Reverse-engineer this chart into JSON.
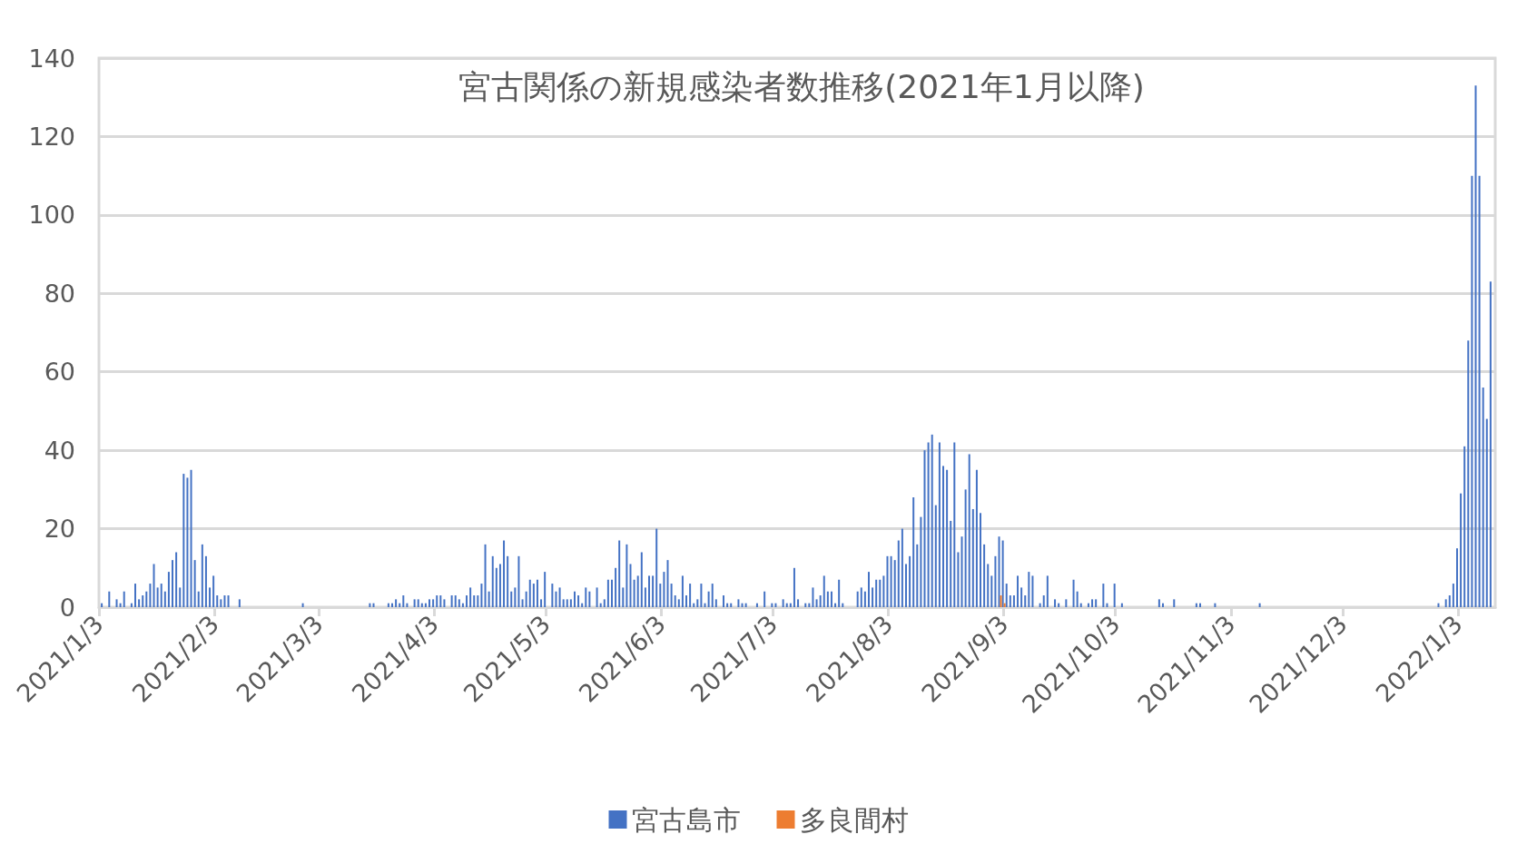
{
  "chart_data": {
    "type": "bar",
    "title": "宮古関係の新規感染者数推移(2021年1月以降)",
    "xlim": [
      "2021-01-03",
      "2022-01-13"
    ],
    "xticks": [
      {
        "value": "2021-01-03",
        "label": "2021/1/3"
      },
      {
        "value": "2021-02-03",
        "label": "2021/2/3"
      },
      {
        "value": "2021-03-03",
        "label": "2021/3/3"
      },
      {
        "value": "2021-04-03",
        "label": "2021/4/3"
      },
      {
        "value": "2021-05-03",
        "label": "2021/5/3"
      },
      {
        "value": "2021-06-03",
        "label": "2021/6/3"
      },
      {
        "value": "2021-07-03",
        "label": "2021/7/3"
      },
      {
        "value": "2021-08-03",
        "label": "2021/8/3"
      },
      {
        "value": "2021-09-03",
        "label": "2021/9/3"
      },
      {
        "value": "2021-10-03",
        "label": "2021/10/3"
      },
      {
        "value": "2021-11-03",
        "label": "2021/11/3"
      },
      {
        "value": "2021-12-03",
        "label": "2021/12/3"
      },
      {
        "value": "2022-01-03",
        "label": "2022/1/3"
      }
    ],
    "ylim": [
      0,
      140
    ],
    "yticks": [
      0,
      20,
      40,
      60,
      80,
      100,
      120,
      140
    ],
    "grid": "y",
    "legend": "bottom",
    "series": [
      {
        "name": "宮古島市",
        "color": "#4472c4",
        "x": [
          "2021-01-04",
          "2021-01-06",
          "2021-01-08",
          "2021-01-09",
          "2021-01-10",
          "2021-01-12",
          "2021-01-13",
          "2021-01-14",
          "2021-01-15",
          "2021-01-16",
          "2021-01-17",
          "2021-01-18",
          "2021-01-19",
          "2021-01-20",
          "2021-01-21",
          "2021-01-22",
          "2021-01-23",
          "2021-01-24",
          "2021-01-25",
          "2021-01-26",
          "2021-01-27",
          "2021-01-28",
          "2021-01-29",
          "2021-01-30",
          "2021-01-31",
          "2021-02-01",
          "2021-02-02",
          "2021-02-03",
          "2021-02-04",
          "2021-02-05",
          "2021-02-06",
          "2021-02-07",
          "2021-02-10",
          "2021-02-27",
          "2021-03-17",
          "2021-03-18",
          "2021-03-22",
          "2021-03-23",
          "2021-03-24",
          "2021-03-25",
          "2021-03-26",
          "2021-03-27",
          "2021-03-29",
          "2021-03-30",
          "2021-03-31",
          "2021-04-01",
          "2021-04-02",
          "2021-04-03",
          "2021-04-04",
          "2021-04-05",
          "2021-04-06",
          "2021-04-08",
          "2021-04-09",
          "2021-04-10",
          "2021-04-11",
          "2021-04-12",
          "2021-04-13",
          "2021-04-14",
          "2021-04-15",
          "2021-04-16",
          "2021-04-17",
          "2021-04-18",
          "2021-04-19",
          "2021-04-20",
          "2021-04-21",
          "2021-04-22",
          "2021-04-23",
          "2021-04-24",
          "2021-04-25",
          "2021-04-26",
          "2021-04-27",
          "2021-04-28",
          "2021-04-29",
          "2021-04-30",
          "2021-05-01",
          "2021-05-02",
          "2021-05-03",
          "2021-05-05",
          "2021-05-06",
          "2021-05-07",
          "2021-05-08",
          "2021-05-09",
          "2021-05-10",
          "2021-05-11",
          "2021-05-12",
          "2021-05-13",
          "2021-05-14",
          "2021-05-15",
          "2021-05-17",
          "2021-05-18",
          "2021-05-19",
          "2021-05-20",
          "2021-05-21",
          "2021-05-22",
          "2021-05-23",
          "2021-05-24",
          "2021-05-25",
          "2021-05-26",
          "2021-05-27",
          "2021-05-28",
          "2021-05-29",
          "2021-05-30",
          "2021-05-31",
          "2021-06-01",
          "2021-06-02",
          "2021-06-03",
          "2021-06-04",
          "2021-06-05",
          "2021-06-06",
          "2021-06-07",
          "2021-06-08",
          "2021-06-09",
          "2021-06-10",
          "2021-06-11",
          "2021-06-12",
          "2021-06-13",
          "2021-06-14",
          "2021-06-15",
          "2021-06-16",
          "2021-06-17",
          "2021-06-18",
          "2021-06-20",
          "2021-06-21",
          "2021-06-22",
          "2021-06-24",
          "2021-06-25",
          "2021-06-26",
          "2021-06-29",
          "2021-07-01",
          "2021-07-03",
          "2021-07-04",
          "2021-07-06",
          "2021-07-07",
          "2021-07-08",
          "2021-07-09",
          "2021-07-10",
          "2021-07-12",
          "2021-07-13",
          "2021-07-14",
          "2021-07-15",
          "2021-07-16",
          "2021-07-17",
          "2021-07-18",
          "2021-07-19",
          "2021-07-20",
          "2021-07-21",
          "2021-07-22",
          "2021-07-26",
          "2021-07-27",
          "2021-07-28",
          "2021-07-29",
          "2021-07-30",
          "2021-07-31",
          "2021-08-01",
          "2021-08-02",
          "2021-08-03",
          "2021-08-04",
          "2021-08-05",
          "2021-08-06",
          "2021-08-07",
          "2021-08-08",
          "2021-08-09",
          "2021-08-10",
          "2021-08-11",
          "2021-08-12",
          "2021-08-13",
          "2021-08-14",
          "2021-08-15",
          "2021-08-16",
          "2021-08-17",
          "2021-08-18",
          "2021-08-19",
          "2021-08-20",
          "2021-08-21",
          "2021-08-22",
          "2021-08-23",
          "2021-08-24",
          "2021-08-25",
          "2021-08-26",
          "2021-08-27",
          "2021-08-28",
          "2021-08-29",
          "2021-08-30",
          "2021-08-31",
          "2021-09-01",
          "2021-09-02",
          "2021-09-03",
          "2021-09-04",
          "2021-09-05",
          "2021-09-06",
          "2021-09-07",
          "2021-09-08",
          "2021-09-09",
          "2021-09-10",
          "2021-09-11",
          "2021-09-13",
          "2021-09-14",
          "2021-09-15",
          "2021-09-17",
          "2021-09-18",
          "2021-09-20",
          "2021-09-22",
          "2021-09-23",
          "2021-09-24",
          "2021-09-26",
          "2021-09-27",
          "2021-09-28",
          "2021-09-30",
          "2021-10-01",
          "2021-10-03",
          "2021-10-05",
          "2021-10-15",
          "2021-10-16",
          "2021-10-19",
          "2021-10-25",
          "2021-10-26",
          "2021-10-30",
          "2021-11-11",
          "2021-12-29",
          "2021-12-31",
          "2022-01-01",
          "2022-01-02",
          "2022-01-03",
          "2022-01-04",
          "2022-01-05",
          "2022-01-06",
          "2022-01-07",
          "2022-01-08",
          "2022-01-09",
          "2022-01-10",
          "2022-01-11",
          "2022-01-12"
        ],
        "values": [
          1,
          4,
          2,
          1,
          4,
          1,
          6,
          2,
          3,
          4,
          6,
          11,
          5,
          6,
          4,
          9,
          12,
          14,
          5,
          34,
          33,
          35,
          12,
          4,
          16,
          13,
          5,
          8,
          3,
          2,
          3,
          3,
          2,
          1,
          1,
          1,
          1,
          1,
          2,
          1,
          3,
          1,
          2,
          2,
          1,
          1,
          2,
          2,
          3,
          3,
          2,
          3,
          3,
          2,
          1,
          3,
          5,
          3,
          3,
          6,
          16,
          4,
          13,
          10,
          11,
          17,
          13,
          4,
          5,
          13,
          2,
          4,
          7,
          6,
          7,
          2,
          9,
          6,
          4,
          5,
          2,
          2,
          2,
          4,
          3,
          1,
          5,
          4,
          5,
          1,
          2,
          7,
          7,
          10,
          17,
          5,
          16,
          11,
          7,
          8,
          14,
          5,
          8,
          8,
          20,
          6,
          9,
          12,
          6,
          3,
          2,
          8,
          3,
          6,
          1,
          2,
          6,
          1,
          4,
          6,
          2,
          3,
          1,
          1,
          2,
          1,
          1,
          1,
          4,
          1,
          1,
          2,
          1,
          1,
          10,
          2,
          1,
          1,
          5,
          2,
          3,
          8,
          4,
          4,
          1,
          7,
          1,
          4,
          5,
          4,
          9,
          5,
          7,
          7,
          8,
          13,
          13,
          12,
          17,
          20,
          11,
          13,
          28,
          16,
          23,
          40,
          42,
          44,
          26,
          42,
          36,
          35,
          22,
          42,
          14,
          18,
          30,
          39,
          25,
          35,
          24,
          16,
          11,
          8,
          13,
          18,
          17,
          6,
          3,
          3,
          8,
          5,
          3,
          9,
          8,
          1,
          3,
          8,
          2,
          1,
          2,
          7,
          4,
          1,
          1,
          2,
          2,
          6,
          1,
          6,
          1,
          2,
          1,
          2,
          1,
          1,
          1,
          1,
          1,
          2,
          3,
          6,
          15,
          29,
          41,
          68,
          110,
          133,
          110,
          56,
          48,
          83
        ]
      },
      {
        "name": "多良間村",
        "color": "#ed7d31",
        "x": [
          "2021-09-02",
          "2021-09-03"
        ],
        "values": [
          3,
          1
        ]
      }
    ]
  }
}
